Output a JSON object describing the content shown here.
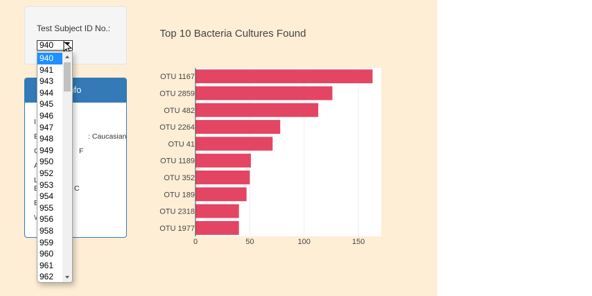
{
  "selector": {
    "label": "Test Subject ID No.:",
    "selected": "940",
    "options": [
      "940",
      "941",
      "943",
      "944",
      "945",
      "946",
      "947",
      "948",
      "949",
      "950",
      "952",
      "953",
      "954",
      "955",
      "956",
      "958",
      "959",
      "960",
      "961",
      "962"
    ]
  },
  "demographics": {
    "title_visible": "aphic Info",
    "rows": [
      {
        "text": "I"
      },
      {
        "text": "E",
        "suffix": ": Caucasian"
      },
      {
        "text": "G",
        "suffix": "F"
      },
      {
        "text": "A"
      },
      {
        "text": "L",
        "suffix": ""
      },
      {
        "text": "E",
        "suffix": "C"
      },
      {
        "text": "E"
      },
      {
        "text": "W"
      }
    ]
  },
  "colors": {
    "bar": "#e34563",
    "accent": "#337ab7",
    "page_bg": "#feeed6",
    "selected_option": "#1e90ff"
  },
  "chart_data": {
    "type": "bar",
    "orientation": "horizontal",
    "title": "Top 10 Bacteria Cultures Found",
    "categories": [
      "OTU 1167",
      "OTU 2859",
      "OTU 482",
      "OTU 2264",
      "OTU 41",
      "OTU 1189",
      "OTU 352",
      "OTU 189",
      "OTU 2318",
      "OTU 1977"
    ],
    "values": [
      163,
      126,
      113,
      78,
      71,
      51,
      50,
      47,
      40,
      40
    ],
    "xlim": [
      0,
      171
    ],
    "xticks": [
      0,
      50,
      100,
      150
    ],
    "grid": true
  }
}
